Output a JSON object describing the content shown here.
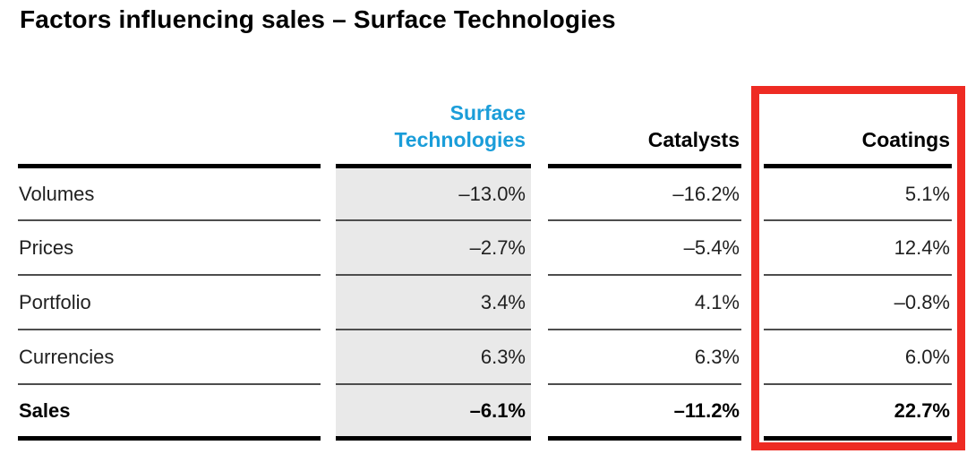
{
  "title": "Factors influencing sales – Surface Technologies",
  "colors": {
    "accent_blue": "#1a9dd9",
    "highlight_column_gray": "#e9e9e9",
    "annotation_red": "#ee2b23",
    "thick_rule": "#000000",
    "thin_rule": "#4d4d4d"
  },
  "table": {
    "columns": [
      {
        "label": "Surface Technologies"
      },
      {
        "label": "Catalysts"
      },
      {
        "label": "Coatings"
      }
    ],
    "rows": [
      {
        "label": "Volumes",
        "values": [
          "–13.0%",
          "–16.2%",
          "5.1%"
        ]
      },
      {
        "label": "Prices",
        "values": [
          "–2.7%",
          "–5.4%",
          "12.4%"
        ]
      },
      {
        "label": "Portfolio",
        "values": [
          "3.4%",
          "4.1%",
          "–0.8%"
        ]
      },
      {
        "label": "Currencies",
        "values": [
          "6.3%",
          "6.3%",
          "6.0%"
        ]
      },
      {
        "label": "Sales",
        "values": [
          "–6.1%",
          "–11.2%",
          "22.7%"
        ]
      }
    ]
  },
  "annotation": {
    "type": "red-outline-box",
    "highlighted_column": "Coatings"
  },
  "chart_data": {
    "type": "table",
    "title": "Factors influencing sales – Surface Technologies",
    "categories": [
      "Volumes",
      "Prices",
      "Portfolio",
      "Currencies",
      "Sales"
    ],
    "series": [
      {
        "name": "Surface Technologies",
        "unit": "%",
        "values": [
          -13.0,
          -2.7,
          3.4,
          6.3,
          -6.1
        ]
      },
      {
        "name": "Catalysts",
        "unit": "%",
        "values": [
          -16.2,
          -5.4,
          4.1,
          6.3,
          -11.2
        ]
      },
      {
        "name": "Coatings",
        "unit": "%",
        "values": [
          5.1,
          12.4,
          -0.8,
          6.0,
          22.7
        ]
      }
    ],
    "annotations": [
      "Coatings column outlined with a red box"
    ],
    "layout": {
      "highlighted_series_background": "Surface Technologies",
      "bold_row": "Sales"
    }
  }
}
